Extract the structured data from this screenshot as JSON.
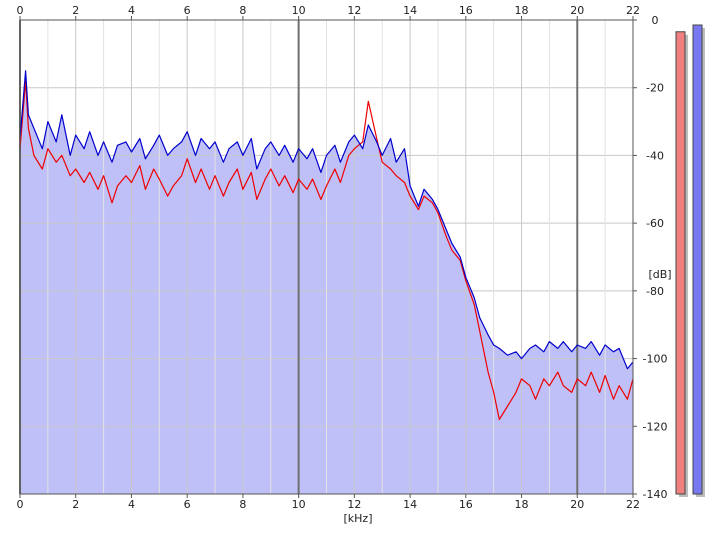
{
  "chart_data": {
    "type": "area",
    "title": "",
    "xlabel": "[kHz]",
    "ylabel": "[dB]",
    "xlim": [
      0,
      22
    ],
    "ylim": [
      -140,
      0
    ],
    "x_ticks": [
      "0",
      "2",
      "4",
      "6",
      "8",
      "10",
      "12",
      "14",
      "16",
      "18",
      "20",
      "22"
    ],
    "y_ticks": [
      "0",
      "-20",
      "-40",
      "-60",
      "-80",
      "-100",
      "-120",
      "-140"
    ],
    "y_tick_values": [
      0,
      -20,
      -40,
      -60,
      -80,
      -100,
      -120,
      -140
    ],
    "grid": true,
    "colors": {
      "fill": "#c0c0f8",
      "blue": "#0000cc",
      "red": "#ee0000",
      "grid": "#c8c8c8",
      "major_grid": "#707070",
      "meter_red": "#f08080",
      "meter_blue": "#7878f0"
    },
    "series": [
      {
        "color": "blue",
        "x": [
          0,
          0.2,
          0.3,
          0.5,
          0.8,
          1,
          1.3,
          1.5,
          1.8,
          2,
          2.3,
          2.5,
          2.8,
          3,
          3.3,
          3.5,
          3.8,
          4,
          4.3,
          4.5,
          4.8,
          5,
          5.3,
          5.5,
          5.8,
          6,
          6.3,
          6.5,
          6.8,
          7,
          7.3,
          7.5,
          7.8,
          8,
          8.3,
          8.5,
          8.8,
          9,
          9.3,
          9.5,
          9.8,
          10,
          10.3,
          10.5,
          10.8,
          11,
          11.3,
          11.5,
          11.8,
          12,
          12.3,
          12.5,
          12.8,
          13,
          13.3,
          13.5,
          13.8,
          14,
          14.3,
          14.5,
          14.8,
          15,
          15.3,
          15.5,
          15.8,
          16,
          16.3,
          16.5,
          16.8,
          17,
          17.2,
          17.5,
          17.8,
          18,
          18.3,
          18.5,
          18.8,
          19,
          19.3,
          19.5,
          19.8,
          20,
          20.3,
          20.5,
          20.8,
          21,
          21.3,
          21.5,
          21.8,
          22
        ],
        "y": [
          -35,
          -15,
          -28,
          -32,
          -38,
          -30,
          -36,
          -28,
          -40,
          -34,
          -38,
          -33,
          -40,
          -36,
          -42,
          -37,
          -36,
          -39,
          -35,
          -41,
          -37,
          -34,
          -40,
          -38,
          -36,
          -33,
          -40,
          -35,
          -38,
          -36,
          -42,
          -38,
          -36,
          -40,
          -35,
          -44,
          -38,
          -36,
          -40,
          -37,
          -42,
          -38,
          -41,
          -38,
          -45,
          -40,
          -37,
          -42,
          -36,
          -34,
          -38,
          -31,
          -36,
          -40,
          -35,
          -42,
          -38,
          -49,
          -55,
          -50,
          -53,
          -56,
          -62,
          -66,
          -70,
          -76,
          -82,
          -88,
          -93,
          -96,
          -97,
          -99,
          -98,
          -100,
          -97,
          -96,
          -98,
          -95,
          -97,
          -95,
          -98,
          -96,
          -97,
          -95,
          -99,
          -96,
          -98,
          -97,
          -103,
          -101
        ]
      },
      {
        "color": "red",
        "x": [
          0,
          0.2,
          0.3,
          0.5,
          0.8,
          1,
          1.3,
          1.5,
          1.8,
          2,
          2.3,
          2.5,
          2.8,
          3,
          3.3,
          3.5,
          3.8,
          4,
          4.3,
          4.5,
          4.8,
          5,
          5.3,
          5.5,
          5.8,
          6,
          6.3,
          6.5,
          6.8,
          7,
          7.3,
          7.5,
          7.8,
          8,
          8.3,
          8.5,
          8.8,
          9,
          9.3,
          9.5,
          9.8,
          10,
          10.3,
          10.5,
          10.8,
          11,
          11.3,
          11.5,
          11.8,
          12,
          12.3,
          12.5,
          12.8,
          13,
          13.3,
          13.5,
          13.8,
          14,
          14.3,
          14.5,
          14.8,
          15,
          15.3,
          15.5,
          15.8,
          16,
          16.3,
          16.5,
          16.8,
          17,
          17.2,
          17.5,
          17.8,
          18,
          18.3,
          18.5,
          18.8,
          19,
          19.3,
          19.5,
          19.8,
          20,
          20.3,
          20.5,
          20.8,
          21,
          21.3,
          21.5,
          21.8,
          22
        ],
        "y": [
          -38,
          -18,
          -32,
          -40,
          -44,
          -38,
          -42,
          -40,
          -46,
          -44,
          -48,
          -45,
          -50,
          -46,
          -54,
          -49,
          -46,
          -48,
          -43,
          -50,
          -44,
          -47,
          -52,
          -49,
          -46,
          -41,
          -48,
          -44,
          -50,
          -46,
          -52,
          -48,
          -44,
          -50,
          -45,
          -53,
          -47,
          -44,
          -49,
          -46,
          -51,
          -47,
          -50,
          -47,
          -53,
          -49,
          -44,
          -48,
          -40,
          -38,
          -36,
          -24,
          -35,
          -42,
          -44,
          -46,
          -48,
          -52,
          -56,
          -52,
          -54,
          -57,
          -64,
          -68,
          -71,
          -77,
          -84,
          -92,
          -104,
          -110,
          -118,
          -114,
          -110,
          -106,
          -108,
          -112,
          -106,
          -108,
          -104,
          -108,
          -110,
          -106,
          -108,
          -104,
          -110,
          -105,
          -112,
          -108,
          -112,
          -106
        ]
      }
    ],
    "level_meters": [
      {
        "color": "red",
        "value": -2
      },
      {
        "color": "blue",
        "value": 0
      }
    ]
  }
}
